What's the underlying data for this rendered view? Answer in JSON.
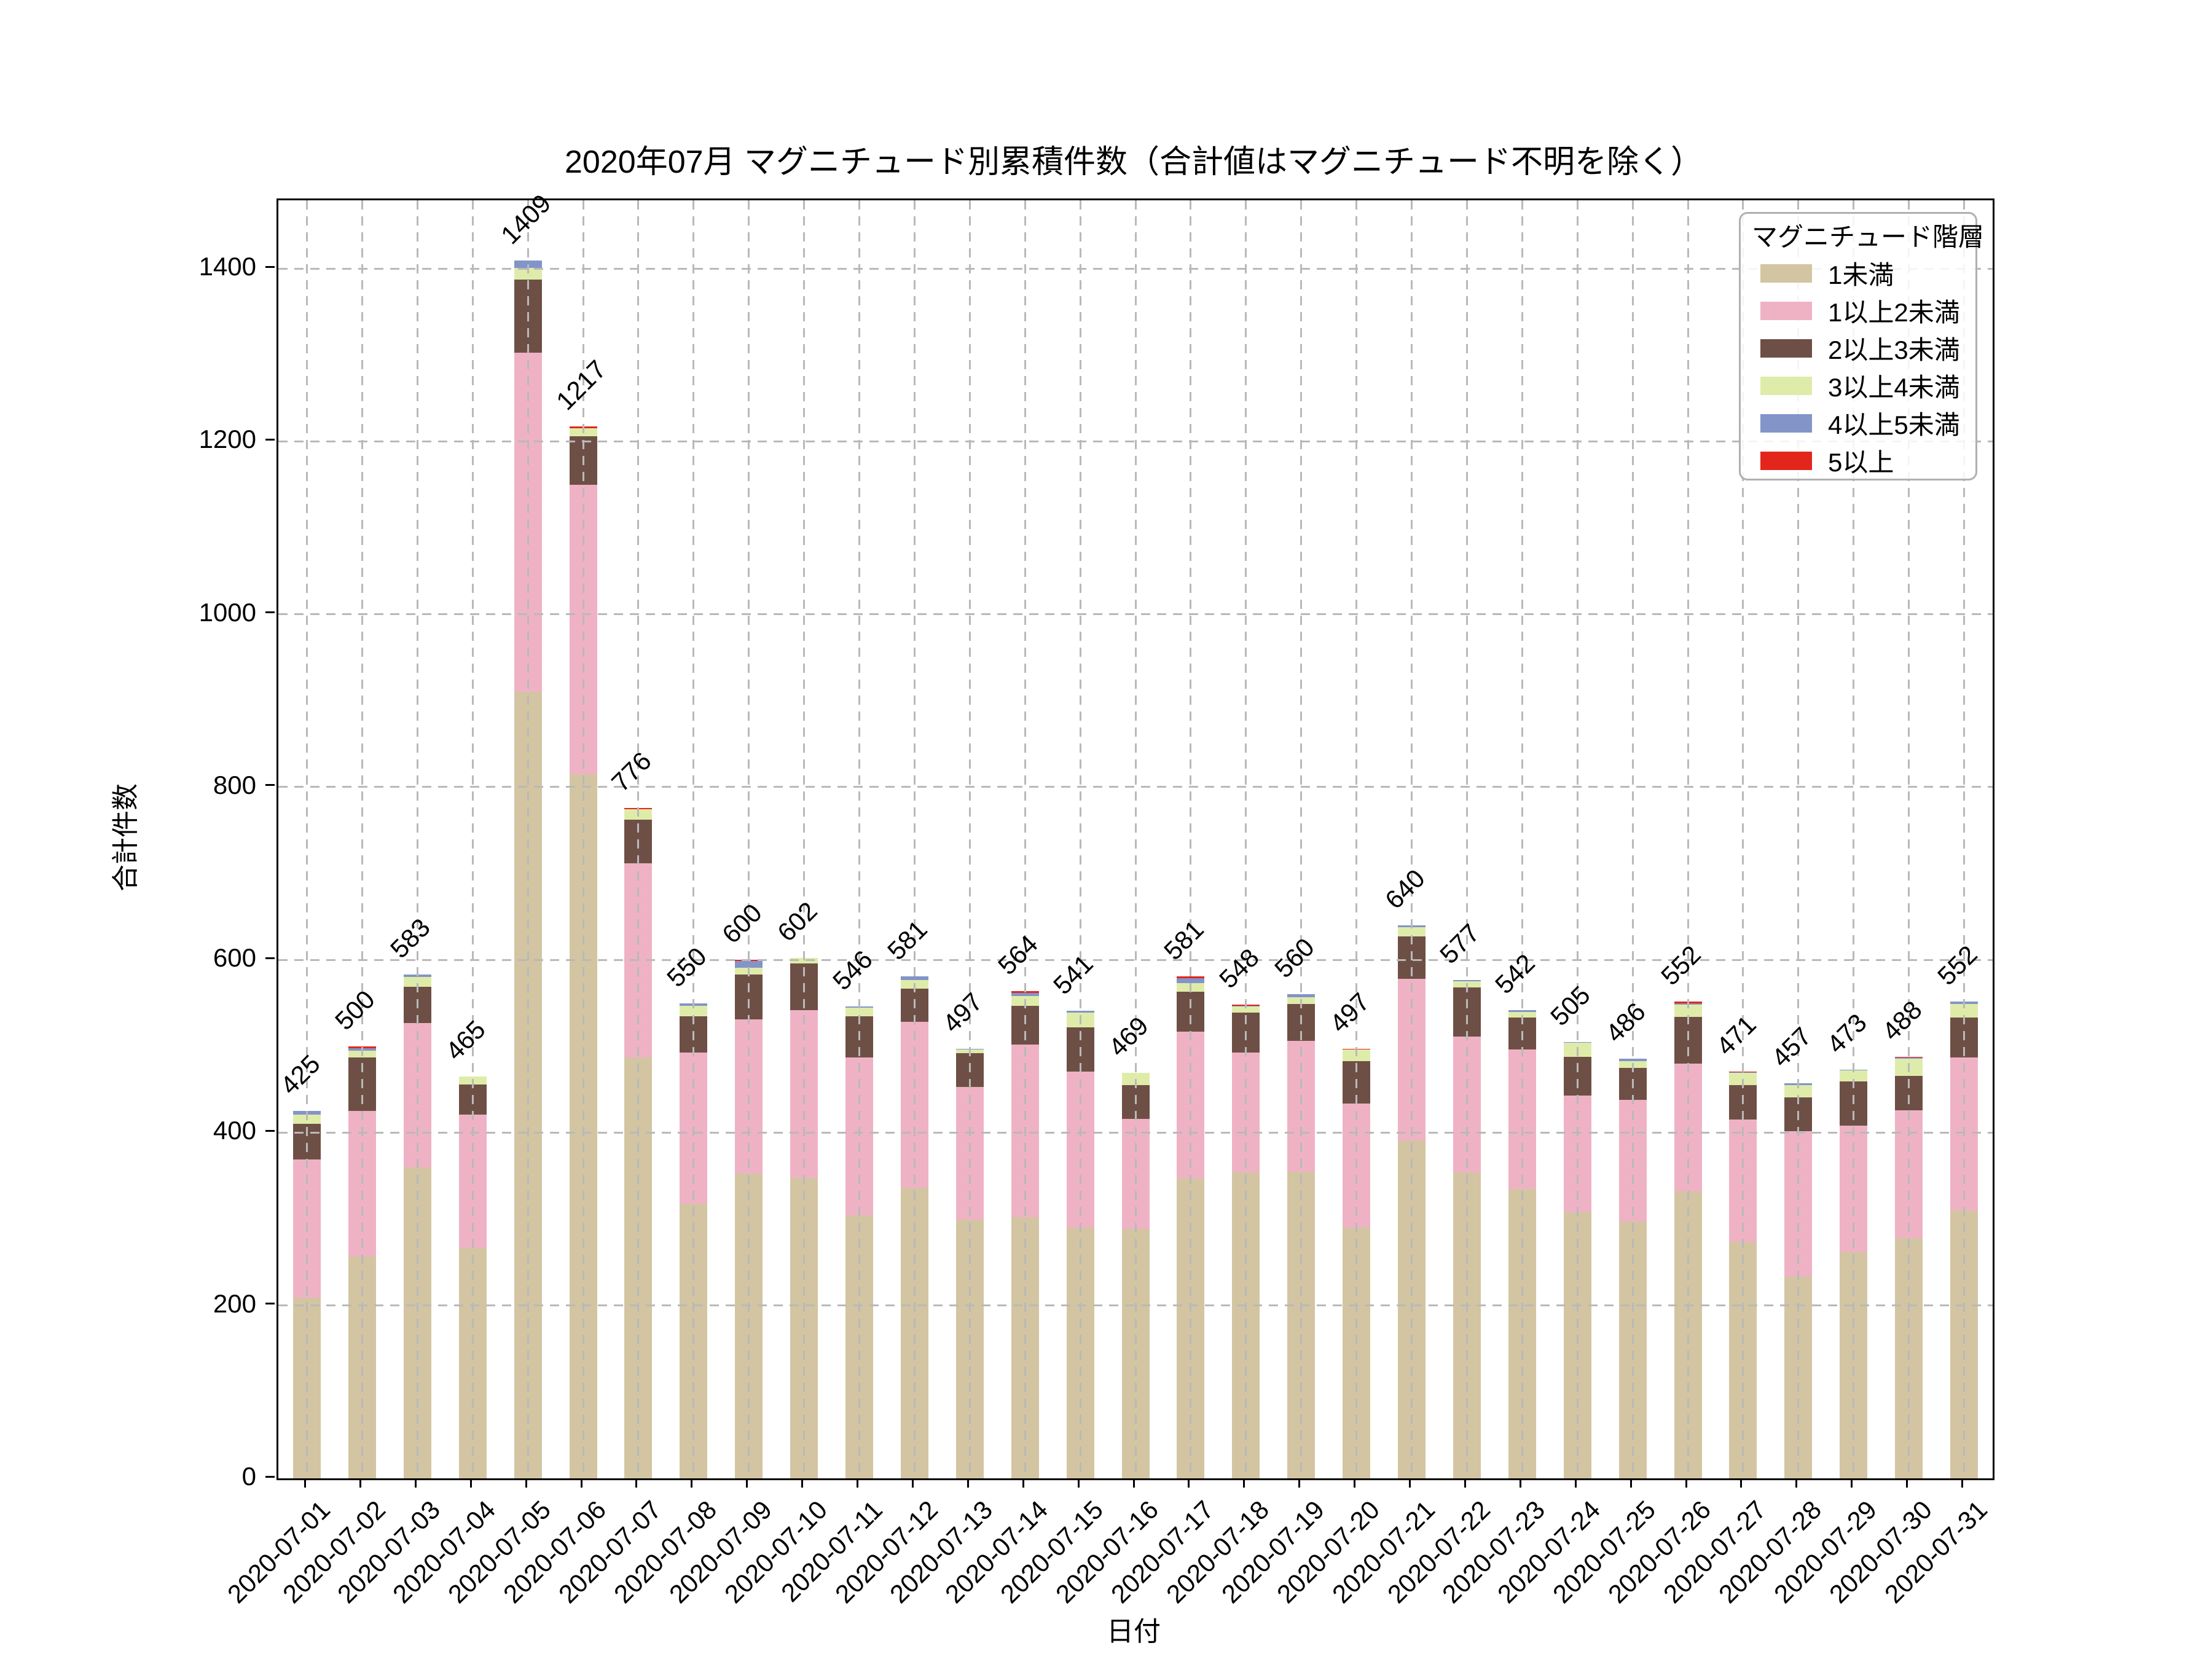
{
  "title": "2020年07月 マグニチュード別累積件数（合計値はマグニチュード不明を除く）",
  "axes": {
    "ylabel": "合計件数",
    "xlabel": "日付",
    "yticks": [
      0,
      200,
      400,
      600,
      800,
      1000,
      1200,
      1400
    ],
    "ylim": [
      0,
      1479
    ],
    "grid": "both-dashed"
  },
  "legend": {
    "title": "マグニチュード階層",
    "position": "upper-right"
  },
  "colors": {
    "m_lt1": "#d3c5a2",
    "m_1_2": "#efb2c5",
    "m_2_3": "#6e4f45",
    "m_3_4": "#dfeca9",
    "m_4_5": "#8294c8",
    "m_ge5": "#e3261c",
    "grid": "#b9b9b9",
    "spine": "#000000"
  },
  "chart_data": {
    "type": "bar",
    "stacked": true,
    "title": "2020年07月 マグニチュード別累積件数（合計値はマグニチュード不明を除く）",
    "xlabel": "日付",
    "ylabel": "合計件数",
    "ylim": [
      0,
      1479
    ],
    "legend_position": "upper right",
    "categories": [
      "2020-07-01",
      "2020-07-02",
      "2020-07-03",
      "2020-07-04",
      "2020-07-05",
      "2020-07-06",
      "2020-07-07",
      "2020-07-08",
      "2020-07-09",
      "2020-07-10",
      "2020-07-11",
      "2020-07-12",
      "2020-07-13",
      "2020-07-14",
      "2020-07-15",
      "2020-07-16",
      "2020-07-17",
      "2020-07-18",
      "2020-07-19",
      "2020-07-20",
      "2020-07-21",
      "2020-07-22",
      "2020-07-23",
      "2020-07-24",
      "2020-07-25",
      "2020-07-26",
      "2020-07-27",
      "2020-07-28",
      "2020-07-29",
      "2020-07-30",
      "2020-07-31"
    ],
    "series": [
      {
        "name": "1未満",
        "color": "#d3c5a2",
        "values": [
          209,
          257,
          360,
          267,
          910,
          815,
          487,
          318,
          353,
          348,
          304,
          336,
          299,
          302,
          290,
          289,
          347,
          354,
          355,
          290,
          391,
          354,
          335,
          308,
          297,
          332,
          274,
          233,
          262,
          278,
          310
        ]
      },
      {
        "name": "1以上2未満",
        "color": "#efb2c5",
        "values": [
          160,
          168,
          167,
          154,
          393,
          335,
          225,
          175,
          178,
          194,
          183,
          192,
          154,
          200,
          181,
          127,
          170,
          139,
          151,
          144,
          187,
          157,
          161,
          135,
          141,
          148,
          141,
          169,
          146,
          148,
          177
        ]
      },
      {
        "name": "2以上3未満",
        "color": "#6e4f45",
        "values": [
          41,
          62,
          42,
          35,
          84,
          56,
          50,
          42,
          52,
          54,
          48,
          39,
          39,
          45,
          51,
          39,
          46,
          46,
          43,
          49,
          49,
          57,
          37,
          45,
          37,
          54,
          40,
          39,
          51,
          40,
          46
        ]
      },
      {
        "name": "3以上4未満",
        "color": "#dfeca9",
        "values": [
          11,
          8,
          11,
          9,
          14,
          9,
          12,
          12,
          8,
          6,
          10,
          10,
          4,
          11,
          17,
          14,
          10,
          7,
          8,
          13,
          11,
          7,
          7,
          16,
          8,
          14,
          14,
          14,
          13,
          20,
          16
        ]
      },
      {
        "name": "4以上5未満",
        "color": "#8294c8",
        "values": [
          4,
          3,
          3,
          0,
          8,
          0,
          0,
          3,
          8,
          0,
          1,
          4,
          1,
          4,
          2,
          0,
          6,
          1,
          3,
          0,
          2,
          2,
          2,
          1,
          3,
          2,
          1,
          2,
          1,
          1,
          3
        ]
      },
      {
        "name": "5以上",
        "color": "#e3261c",
        "values": [
          0,
          2,
          0,
          0,
          0,
          2,
          2,
          0,
          1,
          0,
          0,
          0,
          0,
          2,
          0,
          0,
          2,
          1,
          0,
          1,
          0,
          0,
          0,
          0,
          0,
          2,
          1,
          0,
          0,
          1,
          0
        ]
      }
    ],
    "totals": [
      425,
      500,
      583,
      465,
      1409,
      1217,
      776,
      550,
      600,
      602,
      546,
      581,
      497,
      564,
      541,
      469,
      581,
      548,
      560,
      497,
      640,
      577,
      542,
      505,
      486,
      552,
      471,
      457,
      473,
      488,
      552
    ]
  }
}
